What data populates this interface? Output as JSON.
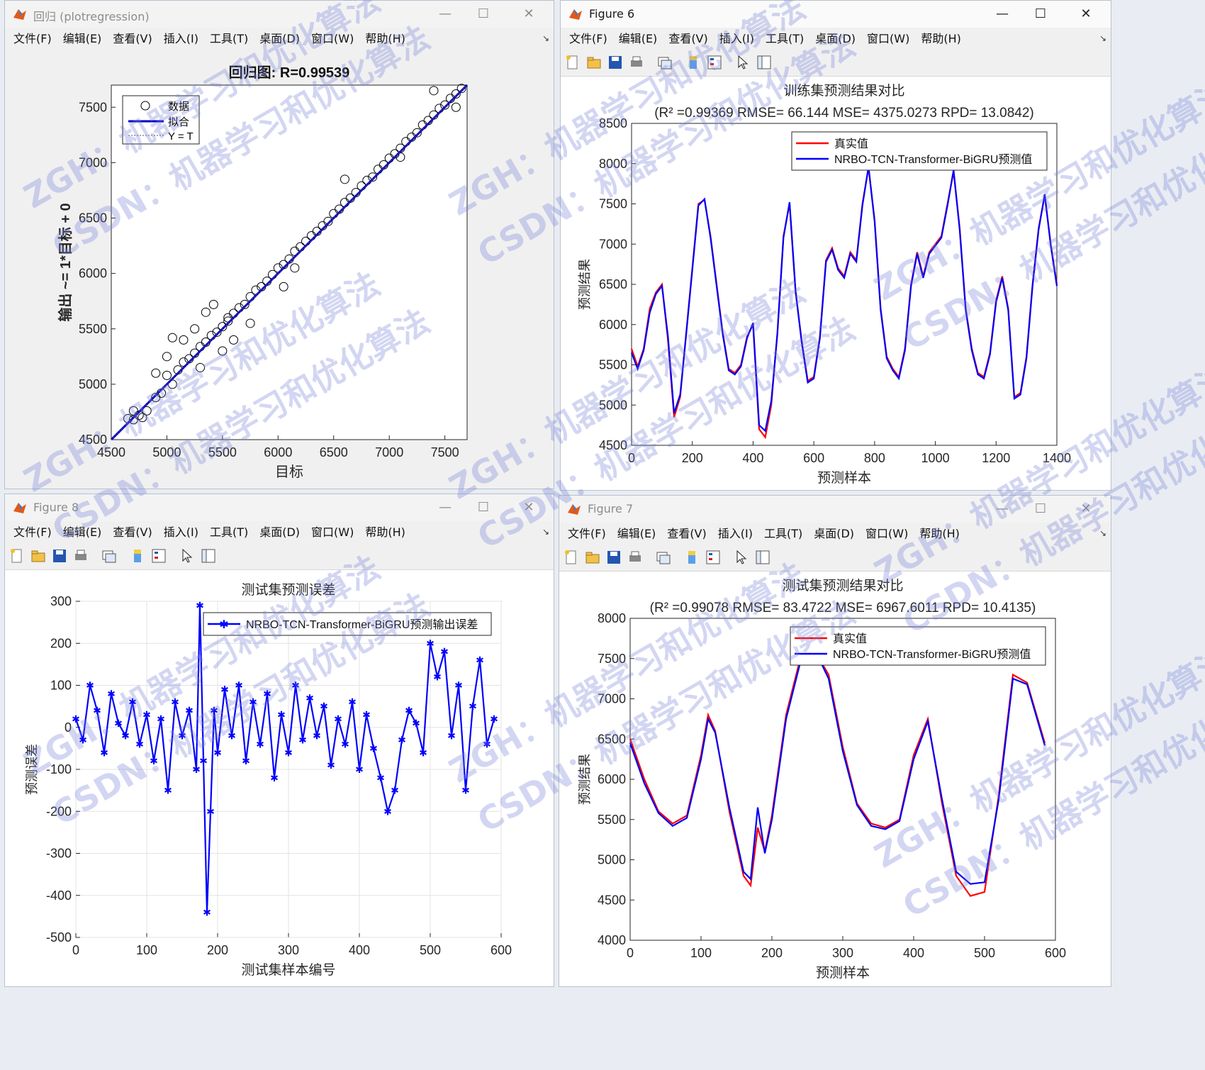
{
  "windows": {
    "regression": {
      "title": "回归 (plotregression)",
      "menu": [
        "文件(F)",
        "编辑(E)",
        "查看(V)",
        "插入(I)",
        "工具(T)",
        "桌面(D)",
        "窗口(W)",
        "帮助(H)"
      ]
    },
    "fig6": {
      "title": "Figure 6",
      "menu": [
        "文件(F)",
        "编辑(E)",
        "查看(V)",
        "插入(I)",
        "工具(T)",
        "桌面(D)",
        "窗口(W)",
        "帮助(H)"
      ]
    },
    "fig8": {
      "title": "Figure 8",
      "menu": [
        "文件(F)",
        "编辑(E)",
        "查看(V)",
        "插入(I)",
        "工具(T)",
        "桌面(D)",
        "窗口(W)",
        "帮助(H)"
      ]
    },
    "fig7": {
      "title": "Figure 7",
      "menu": [
        "文件(F)",
        "编辑(E)",
        "查看(V)",
        "插入(I)",
        "工具(T)",
        "桌面(D)",
        "窗口(W)",
        "帮助(H)"
      ]
    }
  },
  "controls": {
    "minimize": "—",
    "maximize": "☐",
    "close": "✕"
  },
  "colors": {
    "true": "#ff0000",
    "pred": "#0000ff",
    "fit": "#0000cc"
  },
  "watermark": {
    "texts": [
      "ZGH：机器学习和优化算法",
      "CSDN：机器学习和优化算法"
    ]
  },
  "chart_data": [
    {
      "id": "regression",
      "type": "scatter",
      "title": "回归图: R=0.99539",
      "xlabel": "目标",
      "ylabel": "输出 ~= 1*目标 + 0",
      "xlim": [
        4500,
        7700
      ],
      "ylim": [
        4500,
        7700
      ],
      "xticks": [
        4500,
        5000,
        5500,
        6000,
        6500,
        7000,
        7500
      ],
      "yticks": [
        4500,
        5000,
        5500,
        6000,
        6500,
        7000,
        7500
      ],
      "legend": [
        "数据",
        "拟合",
        "Y = T"
      ],
      "points": [
        [
          4650,
          4690
        ],
        [
          4700,
          4680
        ],
        [
          4750,
          4720
        ],
        [
          4780,
          4700
        ],
        [
          4820,
          4760
        ],
        [
          4900,
          4880
        ],
        [
          4950,
          4920
        ],
        [
          5000,
          5080
        ],
        [
          5050,
          5000
        ],
        [
          5100,
          5130
        ],
        [
          5150,
          5200
        ],
        [
          5200,
          5230
        ],
        [
          5250,
          5280
        ],
        [
          5300,
          5340
        ],
        [
          5350,
          5380
        ],
        [
          5400,
          5440
        ],
        [
          5450,
          5470
        ],
        [
          5500,
          5520
        ],
        [
          5550,
          5570
        ],
        [
          5600,
          5640
        ],
        [
          5650,
          5690
        ],
        [
          5700,
          5720
        ],
        [
          5750,
          5790
        ],
        [
          5800,
          5850
        ],
        [
          5850,
          5880
        ],
        [
          5900,
          5930
        ],
        [
          5950,
          5990
        ],
        [
          6000,
          6050
        ],
        [
          6050,
          6080
        ],
        [
          6100,
          6130
        ],
        [
          6150,
          6200
        ],
        [
          6200,
          6240
        ],
        [
          6250,
          6290
        ],
        [
          6300,
          6340
        ],
        [
          6350,
          6380
        ],
        [
          6400,
          6430
        ],
        [
          6450,
          6470
        ],
        [
          6500,
          6540
        ],
        [
          6550,
          6580
        ],
        [
          6600,
          6640
        ],
        [
          6650,
          6680
        ],
        [
          6700,
          6730
        ],
        [
          6750,
          6790
        ],
        [
          6800,
          6840
        ],
        [
          6850,
          6870
        ],
        [
          6900,
          6940
        ],
        [
          6950,
          6980
        ],
        [
          7000,
          7040
        ],
        [
          7050,
          7080
        ],
        [
          7100,
          7130
        ],
        [
          7150,
          7190
        ],
        [
          7200,
          7230
        ],
        [
          7250,
          7270
        ],
        [
          7300,
          7340
        ],
        [
          7350,
          7380
        ],
        [
          7400,
          7430
        ],
        [
          7450,
          7490
        ],
        [
          7500,
          7520
        ],
        [
          7550,
          7580
        ],
        [
          7600,
          7620
        ],
        [
          7650,
          7670
        ],
        [
          4700,
          4760
        ],
        [
          5000,
          5250
        ],
        [
          5050,
          5420
        ],
        [
          5300,
          5150
        ],
        [
          5420,
          5720
        ],
        [
          5500,
          5300
        ],
        [
          5550,
          5600
        ],
        [
          6050,
          5880
        ],
        [
          6150,
          6050
        ],
        [
          6600,
          6850
        ],
        [
          7100,
          7050
        ],
        [
          7400,
          7650
        ],
        [
          7600,
          7500
        ],
        [
          5250,
          5500
        ],
        [
          4900,
          5100
        ],
        [
          5150,
          5400
        ],
        [
          5350,
          5650
        ],
        [
          5600,
          5400
        ],
        [
          5750,
          5550
        ]
      ]
    },
    {
      "id": "fig6",
      "type": "line",
      "title": "训练集预测结果对比",
      "subtitle": "(R² =0.99369 RMSE= 66.144 MSE= 4375.0273 RPD= 13.0842)",
      "xlabel": "预测样本",
      "ylabel": "预测结果",
      "xlim": [
        0,
        1400
      ],
      "ylim": [
        4500,
        8500
      ],
      "xticks": [
        0,
        200,
        400,
        600,
        800,
        1000,
        1200,
        1400
      ],
      "yticks": [
        4500,
        5000,
        5500,
        6000,
        6500,
        7000,
        7500,
        8000,
        8500
      ],
      "series": [
        {
          "name": "真实值",
          "color": "#ff0000",
          "x": [
            0,
            20,
            40,
            60,
            80,
            100,
            120,
            140,
            160,
            180,
            200,
            220,
            240,
            260,
            280,
            300,
            320,
            340,
            360,
            380,
            400,
            420,
            440,
            460,
            480,
            500,
            520,
            540,
            560,
            580,
            600,
            620,
            640,
            660,
            680,
            700,
            720,
            740,
            760,
            780,
            800,
            820,
            840,
            860,
            880,
            900,
            920,
            940,
            960,
            980,
            1000,
            1020,
            1040,
            1060,
            1080,
            1100,
            1120,
            1140,
            1160,
            1180,
            1200,
            1220,
            1240,
            1260,
            1280,
            1300,
            1320,
            1340,
            1360,
            1380,
            1400
          ],
          "values": [
            5700,
            5480,
            5700,
            6200,
            6400,
            6500,
            5800,
            4850,
            5100,
            5900,
            6700,
            7500,
            7550,
            7100,
            6500,
            5900,
            5450,
            5400,
            5500,
            5850,
            6000,
            4700,
            4600,
            5000,
            5900,
            7100,
            7500,
            6400,
            5800,
            5300,
            5350,
            5850,
            6800,
            6950,
            6700,
            6600,
            6900,
            6800,
            7500,
            7950,
            7300,
            6200,
            5600,
            5450,
            5350,
            5700,
            6500,
            6900,
            6600,
            6900,
            7000,
            7100,
            7500,
            7900,
            7200,
            6200,
            5700,
            5400,
            5350,
            5650,
            6300,
            6600,
            6200,
            5100,
            5150,
            5600,
            6500,
            7200,
            7600,
            7000,
            6500
          ]
        },
        {
          "name": "NRBO-TCN-Transformer-BiGRU预测值",
          "color": "#0000ff",
          "x": [
            0,
            20,
            40,
            60,
            80,
            100,
            120,
            140,
            160,
            180,
            200,
            220,
            240,
            260,
            280,
            300,
            320,
            340,
            360,
            380,
            400,
            420,
            440,
            460,
            480,
            500,
            520,
            540,
            560,
            580,
            600,
            620,
            640,
            660,
            680,
            700,
            720,
            740,
            760,
            780,
            800,
            820,
            840,
            860,
            880,
            900,
            920,
            940,
            960,
            980,
            1000,
            1020,
            1040,
            1060,
            1080,
            1100,
            1120,
            1140,
            1160,
            1180,
            1200,
            1220,
            1240,
            1260,
            1280,
            1300,
            1320,
            1340,
            1360,
            1380,
            1400
          ],
          "values": [
            5650,
            5450,
            5680,
            6150,
            6380,
            6480,
            5850,
            4900,
            5130,
            5880,
            6680,
            7480,
            7560,
            7080,
            6480,
            5880,
            5430,
            5380,
            5480,
            5830,
            6020,
            4750,
            4680,
            5050,
            5880,
            7080,
            7520,
            6420,
            5780,
            5280,
            5330,
            5830,
            6780,
            6930,
            6680,
            6580,
            6880,
            6780,
            7480,
            7960,
            7280,
            6180,
            5580,
            5430,
            5330,
            5680,
            6480,
            6880,
            6580,
            6880,
            6980,
            7080,
            7480,
            7920,
            7180,
            6180,
            5680,
            5380,
            5330,
            5630,
            6280,
            6580,
            6180,
            5080,
            5130,
            5580,
            6480,
            7180,
            7620,
            6980,
            6480
          ]
        }
      ]
    },
    {
      "id": "fig8",
      "type": "line",
      "title": "测试集预测误差",
      "xlabel": "测试集样本编号",
      "ylabel": "预测误差",
      "xlim": [
        0,
        600
      ],
      "ylim": [
        -500,
        300
      ],
      "xticks": [
        0,
        100,
        200,
        300,
        400,
        500,
        600
      ],
      "yticks": [
        -500,
        -400,
        -300,
        -200,
        -100,
        0,
        100,
        200,
        300
      ],
      "series": [
        {
          "name": "NRBO-TCN-Transformer-BiGRU预测输出误差",
          "color": "#0000ff",
          "x": [
            0,
            10,
            20,
            30,
            40,
            50,
            60,
            70,
            80,
            90,
            100,
            110,
            120,
            130,
            140,
            150,
            160,
            170,
            175,
            180,
            185,
            190,
            195,
            200,
            210,
            220,
            230,
            240,
            250,
            260,
            270,
            280,
            290,
            300,
            310,
            320,
            330,
            340,
            350,
            360,
            370,
            380,
            390,
            400,
            410,
            420,
            430,
            440,
            450,
            460,
            470,
            480,
            490,
            500,
            510,
            520,
            530,
            540,
            550,
            560,
            570,
            580,
            590
          ],
          "values": [
            20,
            -30,
            100,
            40,
            -60,
            80,
            10,
            -20,
            60,
            -40,
            30,
            -80,
            20,
            -150,
            60,
            -20,
            40,
            -100,
            290,
            -80,
            -440,
            -200,
            40,
            -60,
            90,
            -20,
            100,
            -80,
            60,
            -40,
            80,
            -120,
            30,
            -60,
            100,
            -30,
            70,
            -20,
            50,
            -90,
            20,
            -40,
            60,
            -100,
            30,
            -50,
            -120,
            -200,
            -150,
            -30,
            40,
            10,
            -60,
            200,
            120,
            180,
            -20,
            100,
            -150,
            50,
            160,
            -40,
            20
          ]
        }
      ]
    },
    {
      "id": "fig7",
      "type": "line",
      "title": "测试集预测结果对比",
      "subtitle": "(R² =0.99078 RMSE= 83.4722 MSE= 6967.6011 RPD= 10.4135)",
      "xlabel": "预测样本",
      "ylabel": "预测结果",
      "xlim": [
        0,
        600
      ],
      "ylim": [
        4000,
        8000
      ],
      "xticks": [
        0,
        100,
        200,
        300,
        400,
        500,
        600
      ],
      "yticks": [
        4000,
        4500,
        5000,
        5500,
        6000,
        6500,
        7000,
        7500,
        8000
      ],
      "series": [
        {
          "name": "真实值",
          "color": "#ff0000",
          "x": [
            0,
            20,
            40,
            60,
            80,
            100,
            110,
            120,
            140,
            160,
            170,
            180,
            190,
            200,
            220,
            240,
            260,
            280,
            300,
            320,
            340,
            360,
            380,
            400,
            420,
            440,
            460,
            480,
            500,
            520,
            540,
            560,
            585
          ],
          "values": [
            6500,
            6000,
            5600,
            5450,
            5550,
            6300,
            6800,
            6600,
            5600,
            4800,
            4680,
            5400,
            5100,
            5550,
            6800,
            7500,
            7600,
            7300,
            6400,
            5700,
            5450,
            5400,
            5500,
            6300,
            6750,
            5700,
            4800,
            4550,
            4600,
            5800,
            7300,
            7200,
            6450
          ]
        },
        {
          "name": "NRBO-TCN-Transformer-BiGRU预测值",
          "color": "#0000ff",
          "x": [
            0,
            20,
            40,
            60,
            80,
            100,
            110,
            120,
            140,
            160,
            170,
            180,
            190,
            200,
            220,
            240,
            260,
            280,
            300,
            320,
            340,
            360,
            380,
            400,
            420,
            440,
            460,
            480,
            500,
            520,
            540,
            560,
            585
          ],
          "values": [
            6450,
            5950,
            5580,
            5420,
            5520,
            6250,
            6750,
            6580,
            5650,
            4850,
            4760,
            5650,
            5080,
            5500,
            6750,
            7450,
            7620,
            7250,
            6350,
            5680,
            5420,
            5380,
            5480,
            6250,
            6720,
            5750,
            4850,
            4700,
            4720,
            5750,
            7250,
            7180,
            6420
          ]
        }
      ]
    }
  ]
}
